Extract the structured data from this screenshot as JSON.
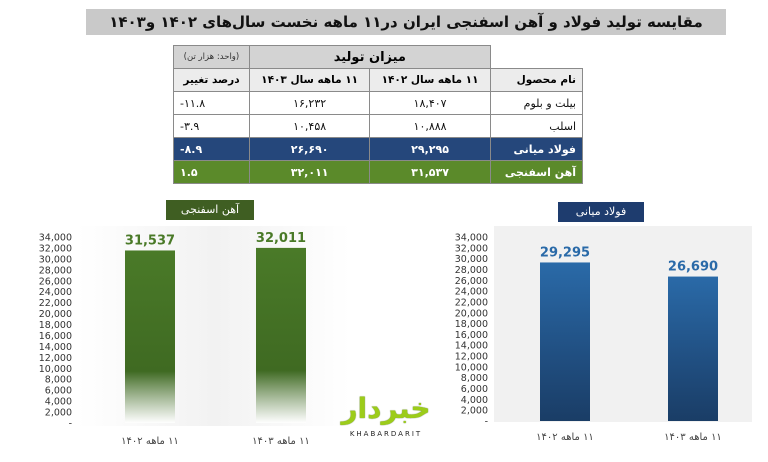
{
  "title": "مقایسه تولید فولاد و آهن اسفنجی ایران در۱۱ ماهه نخست سال‌های ۱۴۰۲ و۱۴۰۳",
  "table": {
    "main_header": "میزان تولید",
    "unit": "(واحد: هزار تن)",
    "columns": [
      "نام محصول",
      "۱۱ ماهه سال ۱۴۰۲",
      "۱۱ ماهه سال ۱۴۰۳",
      "درصد تغییر"
    ],
    "rows": [
      {
        "name": "بیلت و بلوم",
        "y1402": "۱۸,۴۰۷",
        "y1403": "۱۶,۲۳۲",
        "change": "-۱۱.۸",
        "style": "plain"
      },
      {
        "name": "اسلب",
        "y1402": "۱۰,۸۸۸",
        "y1403": "۱۰,۴۵۸",
        "change": "-۳.۹",
        "style": "plain"
      },
      {
        "name": "فولاد میانی",
        "y1402": "۲۹,۲۹۵",
        "y1403": "۲۶,۶۹۰",
        "change": "-۸.۹",
        "style": "blue"
      },
      {
        "name": "آهن اسفنجی",
        "y1402": "۳۱,۵۳۷",
        "y1403": "۳۲,۰۱۱",
        "change": "۱.۵",
        "style": "green"
      }
    ]
  },
  "chart_data": [
    {
      "type": "bar",
      "legend": "آهن اسفنجی",
      "categories": [
        "۱۱ ماهه ۱۴۰۲",
        "۱۱ ماهه ۱۴۰۳"
      ],
      "values": [
        31537,
        32011
      ],
      "value_labels": [
        "31,537",
        "32,011"
      ],
      "ylim": [
        0,
        34000
      ],
      "yticks": [
        "-",
        "2,000",
        "4,000",
        "6,000",
        "8,000",
        "10,000",
        "12,000",
        "14,000",
        "16,000",
        "18,000",
        "20,000",
        "22,000",
        "24,000",
        "26,000",
        "28,000",
        "30,000",
        "32,000",
        "34,000"
      ],
      "color": "#4a7a28"
    },
    {
      "type": "bar",
      "legend": "فولاد میانی",
      "categories": [
        "۱۱ ماهه ۱۴۰۲",
        "۱۱ ماهه ۱۴۰۳"
      ],
      "values": [
        29295,
        26690
      ],
      "value_labels": [
        "29,295",
        "26,690"
      ],
      "ylim": [
        0,
        34000
      ],
      "yticks": [
        "-",
        "2,000",
        "4,000",
        "6,000",
        "8,000",
        "10,000",
        "12,000",
        "14,000",
        "16,000",
        "18,000",
        "20,000",
        "22,000",
        "24,000",
        "26,000",
        "28,000",
        "30,000",
        "32,000",
        "34,000"
      ],
      "color": "#2a6aa8"
    }
  ],
  "logo": {
    "fa": "خبردار",
    "en": "KHABARDARIT"
  },
  "colors": {
    "green_bar": "#4a7a28",
    "blue_bar": "#2a6aa8",
    "green_row": "#5b8a2a",
    "blue_row": "#25477b"
  }
}
